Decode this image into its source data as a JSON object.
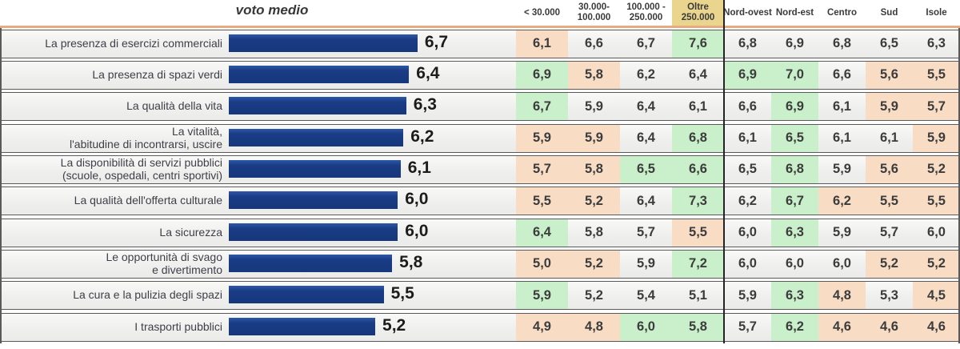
{
  "chart_data": {
    "type": "bar",
    "orientation": "horizontal",
    "title": "voto medio",
    "categories": [
      "La presenza di esercizi commerciali",
      "La presenza di spazi verdi",
      "La qualità della vita",
      "La vitalità, l'abitudine di incontrarsi, uscire",
      "La disponibilità di servizi pubblici (scuole, ospedali, centri sportivi)",
      "La qualità dell'offerta culturale",
      "La sicurezza",
      "Le opportunità di svago e divertimento",
      "La cura e la pulizia degli spazi",
      "I trasporti pubblici"
    ],
    "values": [
      6.7,
      6.4,
      6.3,
      6.2,
      6.1,
      6.0,
      6.0,
      5.8,
      5.5,
      5.2
    ],
    "value_labels": [
      "6,7",
      "6,4",
      "6,3",
      "6,2",
      "6,1",
      "6,0",
      "6,0",
      "5,8",
      "5,5",
      "5,2"
    ],
    "xlim": [
      0,
      8
    ],
    "bar_color": "#16377c",
    "segment_columns": [
      "< 30.000",
      "30.000-100.000",
      "100.000 - 250.000",
      "Oltre 250.000",
      "Nord-ovest",
      "Nord-est",
      "Centro",
      "Sud",
      "Isole"
    ],
    "segment_values": [
      [
        6.1,
        6.6,
        6.7,
        7.6,
        6.8,
        6.9,
        6.8,
        6.5,
        6.3
      ],
      [
        6.9,
        5.8,
        6.2,
        6.4,
        6.9,
        7.0,
        6.6,
        5.6,
        5.5
      ],
      [
        6.7,
        5.9,
        6.4,
        6.1,
        6.6,
        6.9,
        6.1,
        5.9,
        5.7
      ],
      [
        5.9,
        5.9,
        6.4,
        6.8,
        6.1,
        6.5,
        6.1,
        6.1,
        5.9
      ],
      [
        5.7,
        5.8,
        6.5,
        6.6,
        6.5,
        6.8,
        5.9,
        5.6,
        5.2
      ],
      [
        5.5,
        5.2,
        6.4,
        7.3,
        6.2,
        6.7,
        6.2,
        5.5,
        5.5
      ],
      [
        6.4,
        5.8,
        5.7,
        5.5,
        6.0,
        6.3,
        5.9,
        5.7,
        6.0
      ],
      [
        5.0,
        5.2,
        5.9,
        7.2,
        6.0,
        6.0,
        6.0,
        5.2,
        5.2
      ],
      [
        5.9,
        5.2,
        5.4,
        5.1,
        5.9,
        6.3,
        4.8,
        5.3,
        4.5
      ],
      [
        4.9,
        4.8,
        6.0,
        5.8,
        5.7,
        6.2,
        4.6,
        4.6,
        4.6
      ]
    ]
  },
  "table": {
    "columns": [
      {
        "lines": [
          "< 30.000"
        ],
        "highlight": false
      },
      {
        "lines": [
          "30.000-",
          "100.000"
        ],
        "highlight": false
      },
      {
        "lines": [
          "100.000 -",
          "250.000"
        ],
        "highlight": false
      },
      {
        "lines": [
          "Oltre",
          "250.000"
        ],
        "highlight": true
      },
      {
        "lines": [
          "Nord-ovest"
        ],
        "highlight": false
      },
      {
        "lines": [
          "Nord-est"
        ],
        "highlight": false
      },
      {
        "lines": [
          "Centro"
        ],
        "highlight": false
      },
      {
        "lines": [
          "Sud"
        ],
        "highlight": false
      },
      {
        "lines": [
          "Isole"
        ],
        "highlight": false
      }
    ],
    "rows": [
      {
        "label_lines": [
          "La presenza di esercizi commerciali"
        ],
        "cells": [
          "6,1",
          "6,6",
          "6,7",
          "7,6",
          "6,8",
          "6,9",
          "6,8",
          "6,5",
          "6,3"
        ],
        "cell_colors": [
          "peach",
          "none",
          "none",
          "green",
          "none",
          "none",
          "none",
          "none",
          "none"
        ]
      },
      {
        "label_lines": [
          "La presenza di spazi verdi"
        ],
        "cells": [
          "6,9",
          "5,8",
          "6,2",
          "6,4",
          "6,9",
          "7,0",
          "6,6",
          "5,6",
          "5,5"
        ],
        "cell_colors": [
          "green",
          "peach",
          "none",
          "none",
          "green",
          "green",
          "none",
          "peach",
          "peach"
        ]
      },
      {
        "label_lines": [
          "La qualità della vita"
        ],
        "cells": [
          "6,7",
          "5,9",
          "6,4",
          "6,1",
          "6,6",
          "6,9",
          "6,1",
          "5,9",
          "5,7"
        ],
        "cell_colors": [
          "green",
          "none",
          "none",
          "none",
          "none",
          "green",
          "none",
          "peach",
          "peach"
        ]
      },
      {
        "label_lines": [
          "La vitalità,",
          "l'abitudine di incontrarsi, uscire"
        ],
        "cells": [
          "5,9",
          "5,9",
          "6,4",
          "6,8",
          "6,1",
          "6,5",
          "6,1",
          "6,1",
          "5,9"
        ],
        "cell_colors": [
          "peach",
          "peach",
          "none",
          "green",
          "none",
          "green",
          "none",
          "none",
          "peach"
        ]
      },
      {
        "label_lines": [
          "La disponibilità di servizi pubblici",
          "(scuole, ospedali, centri sportivi)"
        ],
        "cells": [
          "5,7",
          "5,8",
          "6,5",
          "6,6",
          "6,5",
          "6,8",
          "5,9",
          "5,6",
          "5,2"
        ],
        "cell_colors": [
          "peach",
          "peach",
          "green",
          "green",
          "none",
          "green",
          "none",
          "peach",
          "peach"
        ]
      },
      {
        "label_lines": [
          "La qualità dell'offerta culturale"
        ],
        "cells": [
          "5,5",
          "5,2",
          "6,4",
          "7,3",
          "6,2",
          "6,7",
          "6,2",
          "5,5",
          "5,5"
        ],
        "cell_colors": [
          "peach",
          "peach",
          "none",
          "green",
          "none",
          "green",
          "peach",
          "peach",
          "peach"
        ]
      },
      {
        "label_lines": [
          "La sicurezza"
        ],
        "cells": [
          "6,4",
          "5,8",
          "5,7",
          "5,5",
          "6,0",
          "6,3",
          "5,9",
          "5,7",
          "6,0"
        ],
        "cell_colors": [
          "green",
          "none",
          "none",
          "peach",
          "none",
          "green",
          "none",
          "none",
          "none"
        ]
      },
      {
        "label_lines": [
          "Le opportunità di svago",
          "e divertimento"
        ],
        "cells": [
          "5,0",
          "5,2",
          "5,9",
          "7,2",
          "6,0",
          "6,0",
          "6,0",
          "5,2",
          "5,2"
        ],
        "cell_colors": [
          "peach",
          "peach",
          "none",
          "green",
          "none",
          "none",
          "none",
          "peach",
          "peach"
        ]
      },
      {
        "label_lines": [
          "La cura e la pulizia degli spazi"
        ],
        "cells": [
          "5,9",
          "5,2",
          "5,4",
          "5,1",
          "5,9",
          "6,3",
          "4,8",
          "5,3",
          "4,5"
        ],
        "cell_colors": [
          "green",
          "none",
          "none",
          "none",
          "none",
          "green",
          "peach",
          "none",
          "peach"
        ]
      },
      {
        "label_lines": [
          "I trasporti pubblici"
        ],
        "cells": [
          "4,9",
          "4,8",
          "6,0",
          "5,8",
          "5,7",
          "6,2",
          "4,6",
          "4,6",
          "4,6"
        ],
        "cell_colors": [
          "peach",
          "peach",
          "green",
          "green",
          "none",
          "green",
          "peach",
          "peach",
          "peach"
        ]
      }
    ]
  },
  "colors": {
    "bar": "#16377c",
    "cell_green": "#c9f0ca",
    "cell_peach": "#f8dcc4",
    "header_tan": "#e9d58e",
    "accent_line": "#e8ab80"
  }
}
